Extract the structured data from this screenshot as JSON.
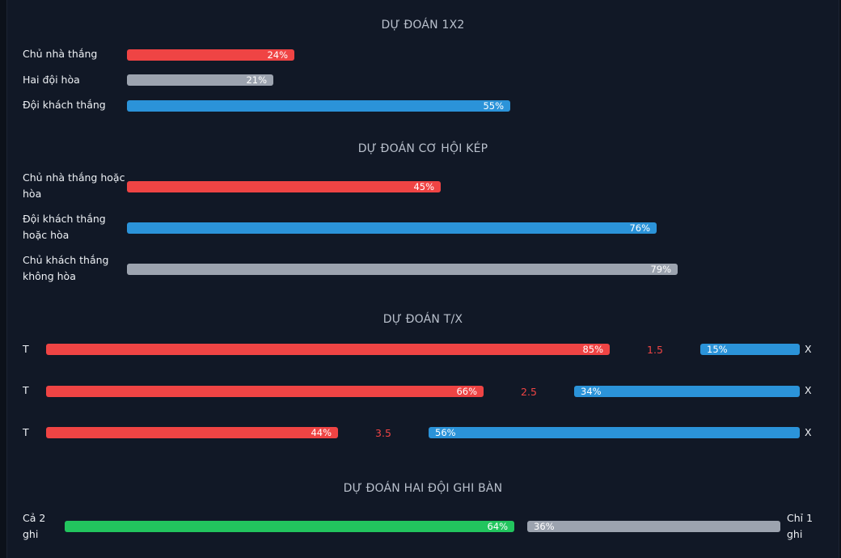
{
  "sections": {
    "one_x_two": {
      "title": "DỰ ĐOÁN 1X2",
      "rows": [
        {
          "label": "Chủ nhà thắng",
          "percent": "24%",
          "value": 24,
          "color": "#ef4444"
        },
        {
          "label": "Hai đội hòa",
          "percent": "21%",
          "value": 21,
          "color": "#9ca3af"
        },
        {
          "label": "Đội khách thắng",
          "percent": "55%",
          "value": 55,
          "color": "#2b93d9"
        }
      ]
    },
    "double_chance": {
      "title": "DỰ ĐOÁN CƠ HỘI KÉP",
      "rows": [
        {
          "label_line1": "Chủ nhà thắng hoặc",
          "label_line2": "hòa",
          "percent": "45%",
          "value": 45,
          "color": "#ef4444"
        },
        {
          "label_line1": "Đội khách thắng",
          "label_line2": "hoặc hòa",
          "percent": "76%",
          "value": 76,
          "color": "#2b93d9"
        },
        {
          "label_line1": "Chủ khách thắng",
          "label_line2": "không hòa",
          "percent": "79%",
          "value": 79,
          "color": "#9ca3af"
        }
      ]
    },
    "over_under": {
      "title": "DỰ ĐOÁN T/X",
      "left_label": "T",
      "right_label": "X",
      "rows": [
        {
          "line": "1.5",
          "over_percent": "85%",
          "over_value": 85,
          "under_percent": "15%",
          "under_value": 15
        },
        {
          "line": "2.5",
          "over_percent": "66%",
          "over_value": 66,
          "under_percent": "34%",
          "under_value": 34
        },
        {
          "line": "3.5",
          "over_percent": "44%",
          "over_value": 44,
          "under_percent": "56%",
          "under_value": 56
        }
      ]
    },
    "btts": {
      "title": "DỰ ĐOÁN HAI ĐỘI GHI BÀN",
      "left_label_line1": "Cả 2",
      "left_label_line2": "ghi",
      "right_label_line1": "Chỉ 1",
      "right_label_line2": "ghi",
      "yes_percent": "64%",
      "yes_value": 64,
      "no_percent": "36%",
      "no_value": 36
    }
  },
  "colors": {
    "home": "#ef4444",
    "draw": "#9ca3af",
    "away": "#2b93d9",
    "btts_yes": "#22c55e",
    "background": "#111826"
  }
}
